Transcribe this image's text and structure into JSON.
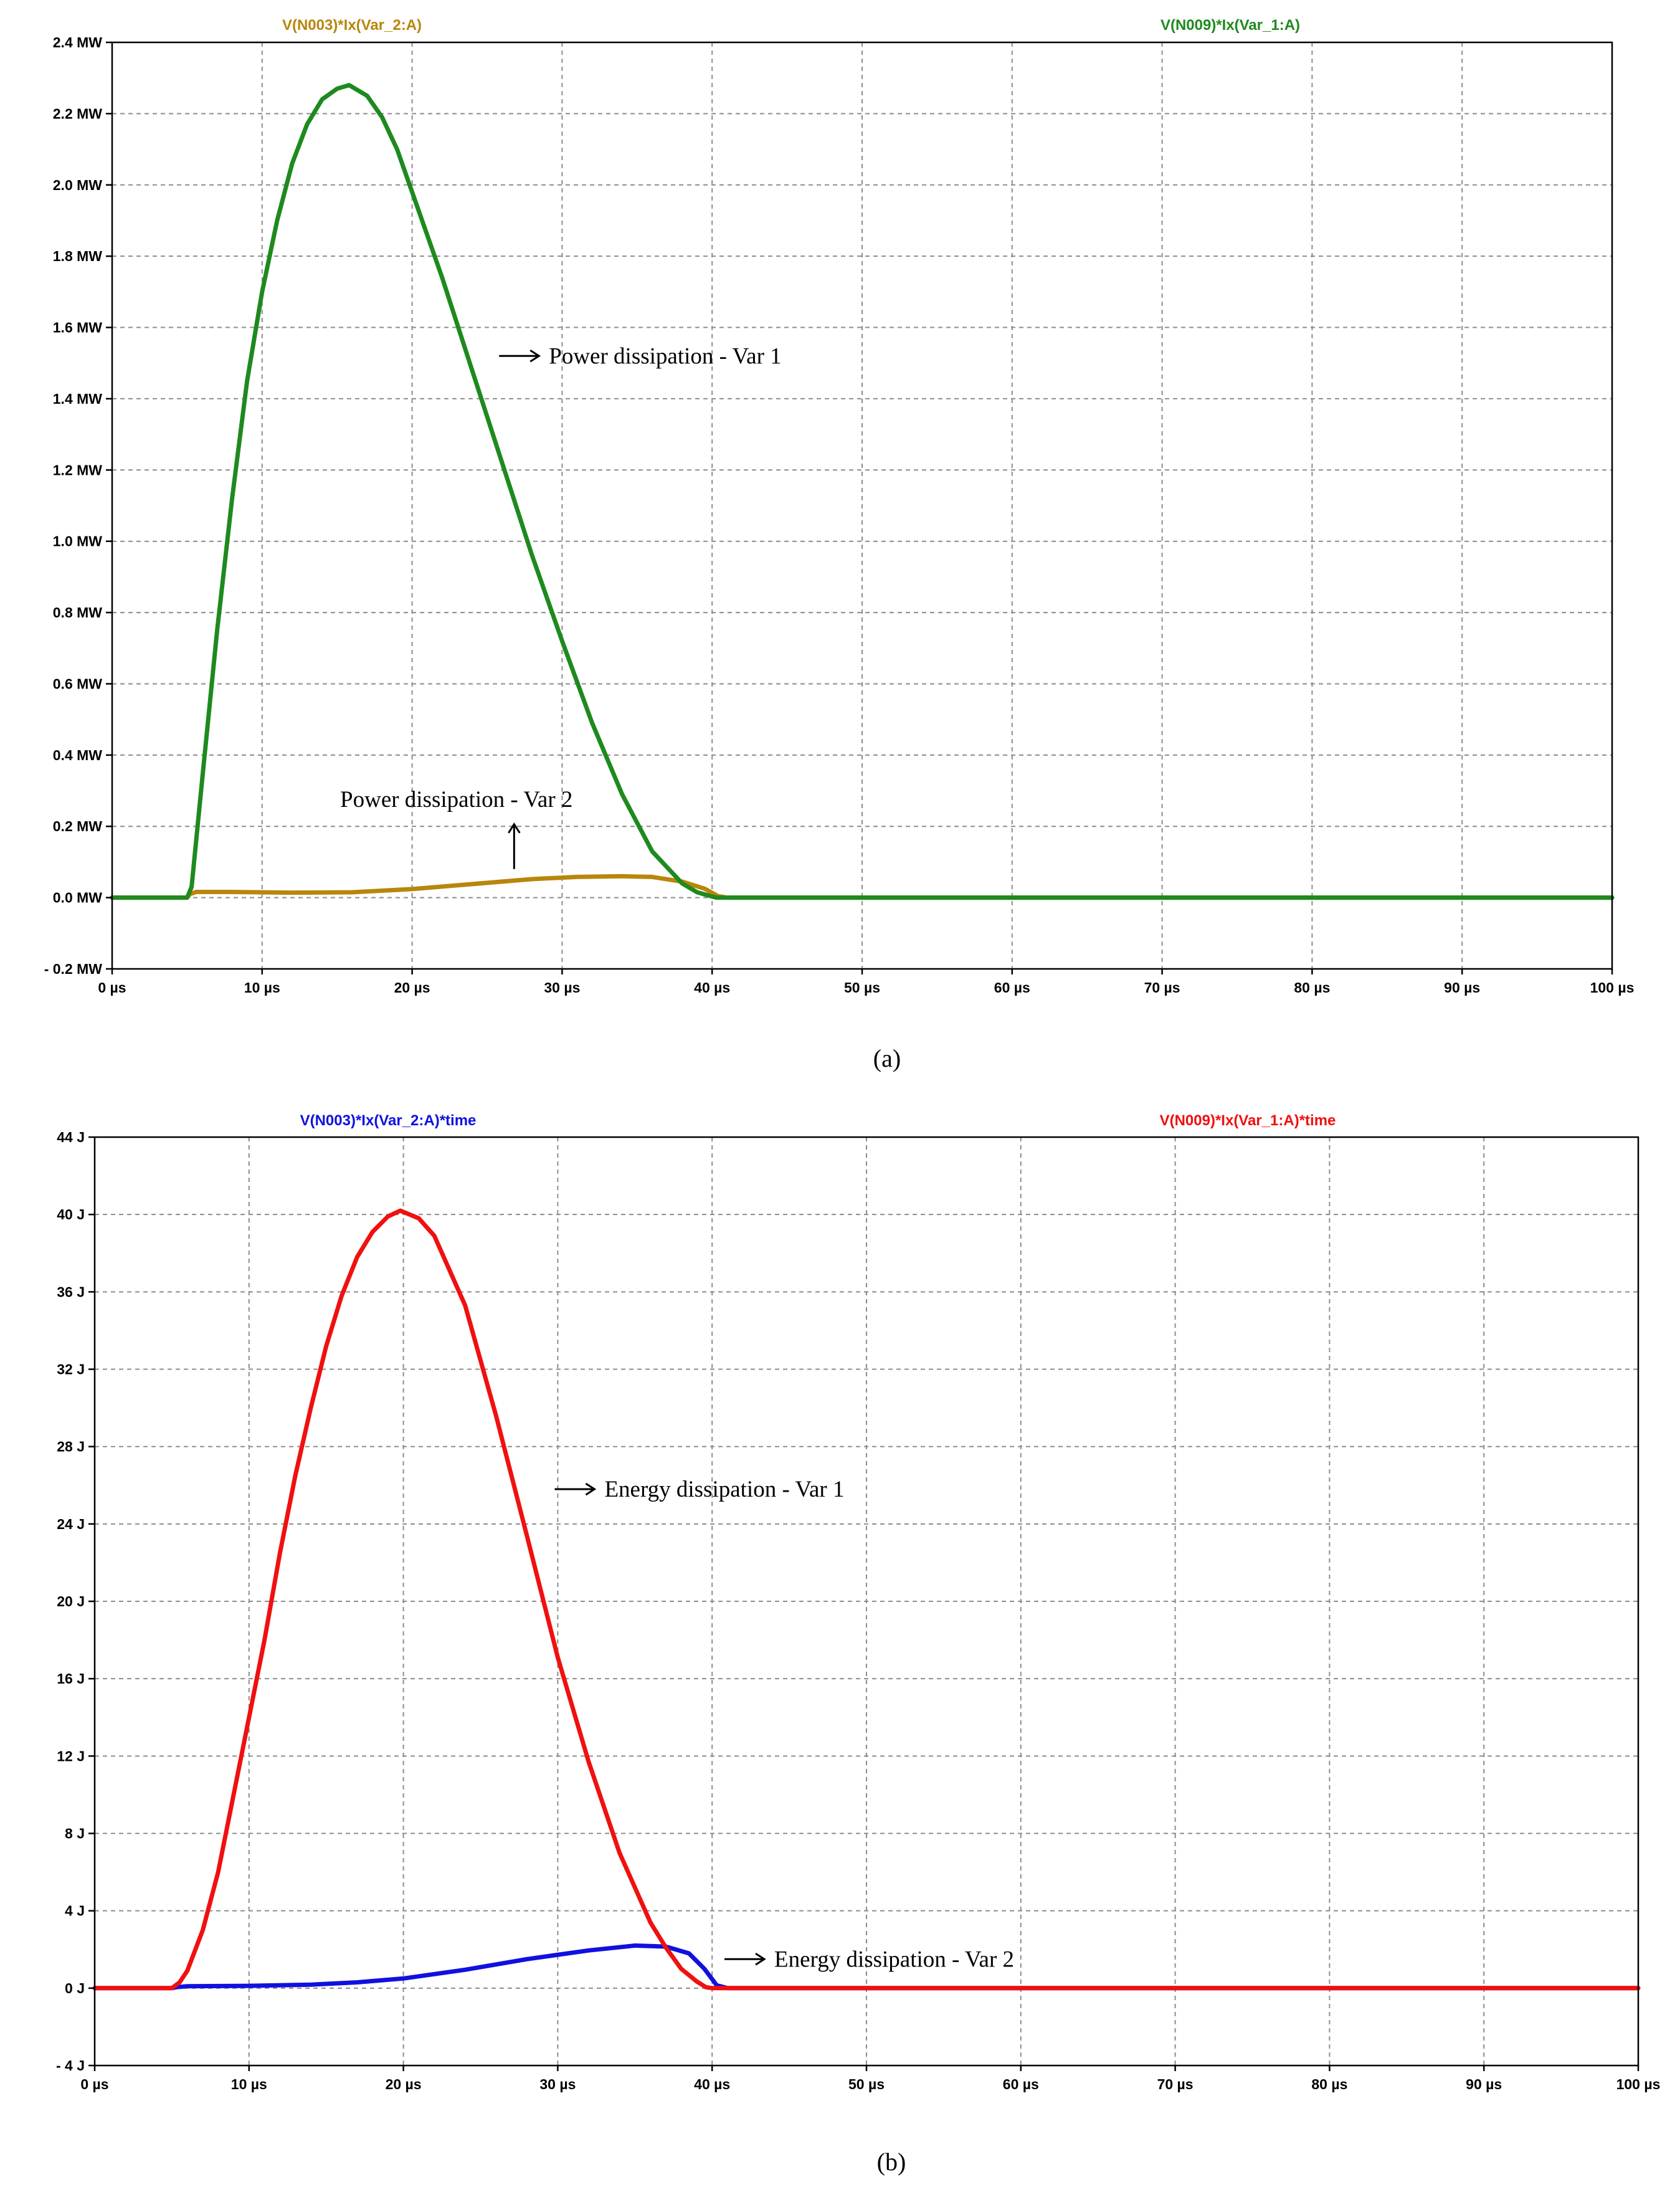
{
  "chart_data": [
    {
      "type": "line",
      "panel_caption": "(a)",
      "x_unit": "µs",
      "y_unit": "MW",
      "xlim": [
        0,
        100
      ],
      "ylim": [
        -0.2,
        2.4
      ],
      "x_ticks": [
        0,
        10,
        20,
        30,
        40,
        50,
        60,
        70,
        80,
        90,
        100
      ],
      "x_tick_labels": [
        "0 µs",
        "10 µs",
        "20 µs",
        "30 µs",
        "40 µs",
        "50 µs",
        "60 µs",
        "70 µs",
        "80 µs",
        "90 µs",
        "100 µs"
      ],
      "y_ticks": [
        -0.2,
        0.0,
        0.2,
        0.4,
        0.6,
        0.8,
        1.0,
        1.2,
        1.4,
        1.6,
        1.8,
        2.0,
        2.2,
        2.4
      ],
      "y_tick_labels": [
        "- 0.2 MW",
        "0.0 MW",
        "0.2 MW",
        "0.4 MW",
        "0.6 MW",
        "0.8 MW",
        "1.0 MW",
        "1.2 MW",
        "1.4 MW",
        "1.6 MW",
        "1.8 MW",
        "2.0 MW",
        "2.2 MW",
        "2.4 MW"
      ],
      "grid": true,
      "series": [
        {
          "name": "V(N003)*Ix(Var_2:A)",
          "color": "#b8860b",
          "x": [
            0,
            5,
            5.2,
            5.6,
            8,
            12,
            16,
            20,
            24,
            28,
            31,
            34,
            36,
            38,
            39.5,
            40.4,
            41,
            100
          ],
          "y": [
            0,
            0,
            0.01,
            0.016,
            0.016,
            0.014,
            0.015,
            0.024,
            0.038,
            0.052,
            0.058,
            0.06,
            0.058,
            0.045,
            0.025,
            0.004,
            0,
            0
          ]
        },
        {
          "name": "V(N009)*Ix(Var_1:A)",
          "color": "#1e8a1e",
          "x": [
            0,
            5,
            5.3,
            6,
            7,
            8,
            9,
            10,
            11,
            12,
            13,
            14,
            15,
            15.8,
            17,
            18,
            19,
            20,
            22,
            24,
            26,
            28,
            30,
            32,
            34,
            36,
            38,
            39,
            40,
            40.3,
            41,
            100
          ],
          "y": [
            0,
            0,
            0.03,
            0.33,
            0.75,
            1.12,
            1.45,
            1.7,
            1.9,
            2.06,
            2.17,
            2.24,
            2.27,
            2.28,
            2.25,
            2.19,
            2.1,
            1.98,
            1.74,
            1.48,
            1.22,
            0.96,
            0.72,
            0.49,
            0.29,
            0.13,
            0.04,
            0.015,
            0.003,
            0,
            0,
            0
          ]
        }
      ],
      "annotations": [
        {
          "text": "Power dissipation - Var 1",
          "x": 25.8,
          "y": 1.52,
          "arrow": "right"
        },
        {
          "text": "Power dissipation - Var 2",
          "x": 15.2,
          "y": 0.255,
          "arrow": "up",
          "arrow_x": 26.8
        }
      ]
    },
    {
      "type": "line",
      "panel_caption": "(b)",
      "x_unit": "µs",
      "y_unit": "J",
      "xlim": [
        0,
        100
      ],
      "ylim": [
        -4,
        44
      ],
      "x_ticks": [
        0,
        10,
        20,
        30,
        40,
        50,
        60,
        70,
        80,
        90,
        100
      ],
      "x_tick_labels": [
        "0 µs",
        "10 µs",
        "20 µs",
        "30 µs",
        "40 µs",
        "50 µs",
        "60 µs",
        "70 µs",
        "80 µs",
        "90 µs",
        "100 µs"
      ],
      "y_ticks": [
        -4,
        0,
        4,
        8,
        12,
        16,
        20,
        24,
        28,
        32,
        36,
        40,
        44
      ],
      "y_tick_labels": [
        "- 4 J",
        "0 J",
        "4 J",
        "8 J",
        "12 J",
        "16 J",
        "20 J",
        "24 J",
        "28 J",
        "32 J",
        "36 J",
        "40 J",
        "44 J"
      ],
      "grid": true,
      "series": [
        {
          "name": "V(N003)*Ix(Var_2:A)*time",
          "color": "#1010e0",
          "x": [
            0,
            5,
            5.3,
            6,
            10,
            14,
            17,
            20,
            24,
            28,
            32,
            35,
            37,
            38.5,
            39.5,
            40.3,
            41,
            100
          ],
          "y": [
            0,
            0,
            0.05,
            0.1,
            0.12,
            0.18,
            0.3,
            0.5,
            0.95,
            1.5,
            1.95,
            2.2,
            2.15,
            1.8,
            1.0,
            0.15,
            0,
            0
          ]
        },
        {
          "name": "V(N009)*Ix(Var_1:A)*time",
          "color": "#f01010",
          "x": [
            0,
            5,
            5.5,
            6,
            7,
            8,
            9,
            10,
            11,
            12,
            13,
            14,
            15,
            16,
            17,
            18,
            19,
            19.8,
            21,
            22,
            24,
            26,
            28,
            30,
            32,
            34,
            36,
            37,
            38,
            39,
            39.6,
            40,
            41,
            100
          ],
          "y": [
            0,
            0,
            0.3,
            0.9,
            3.0,
            6.0,
            10.0,
            14.0,
            18.0,
            22.5,
            26.5,
            30.0,
            33.2,
            35.8,
            37.8,
            39.1,
            39.9,
            40.2,
            39.8,
            38.9,
            35.3,
            29.6,
            23.4,
            17.1,
            11.7,
            7.0,
            3.4,
            2.1,
            1.0,
            0.35,
            0.05,
            0,
            0,
            0
          ]
        }
      ],
      "annotations": [
        {
          "text": "Energy dissipation - Var 1",
          "x": 29.8,
          "y": 25.8,
          "arrow": "right"
        },
        {
          "text": "Energy dissipation - Var 2",
          "x": 40.8,
          "y": 1.5,
          "arrow": "right"
        }
      ]
    }
  ]
}
